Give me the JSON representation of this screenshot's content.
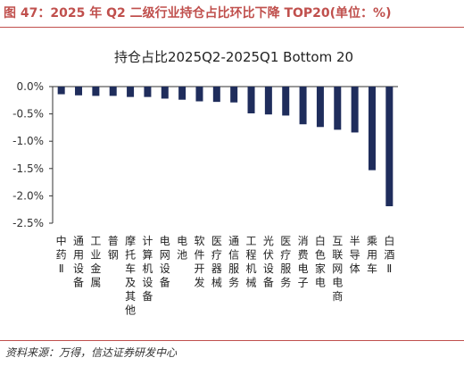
{
  "figure": {
    "title": "图 47：2025 年 Q2 二级行业持仓占比环比下降 TOP20(单位：%)",
    "source": "资料来源：万得，信达证券研发中心"
  },
  "colors": {
    "accent": "#c0504d",
    "bar": "#1f2d5c",
    "axis": "#333333"
  },
  "chart_data": {
    "type": "bar",
    "title": "持仓占比2025Q2-2025Q1 Bottom 20",
    "xlabel": "",
    "ylabel": "",
    "ylim": [
      -2.5,
      0
    ],
    "yticks": [
      "0.0%",
      "-0.5%",
      "-1.0%",
      "-1.5%",
      "-2.0%",
      "-2.5%"
    ],
    "ytick_values": [
      0,
      -0.5,
      -1.0,
      -1.5,
      -2.0,
      -2.5
    ],
    "grid": false,
    "categories": [
      "中药Ⅱ",
      "通用设备",
      "工业金属",
      "普钢",
      "摩托车及其他",
      "计算机设备",
      "电网设备",
      "电池",
      "软件开发",
      "医疗器械",
      "通信服务",
      "工程机械",
      "光伏设备",
      "医疗服务",
      "消费电子",
      "白色家电",
      "互联网电商",
      "半导体",
      "乘用车",
      "白酒Ⅱ"
    ],
    "values": [
      -0.14,
      -0.16,
      -0.17,
      -0.17,
      -0.19,
      -0.19,
      -0.22,
      -0.24,
      -0.27,
      -0.28,
      -0.29,
      -0.49,
      -0.51,
      -0.53,
      -0.69,
      -0.74,
      -0.79,
      -0.84,
      -1.53,
      -2.19
    ]
  }
}
